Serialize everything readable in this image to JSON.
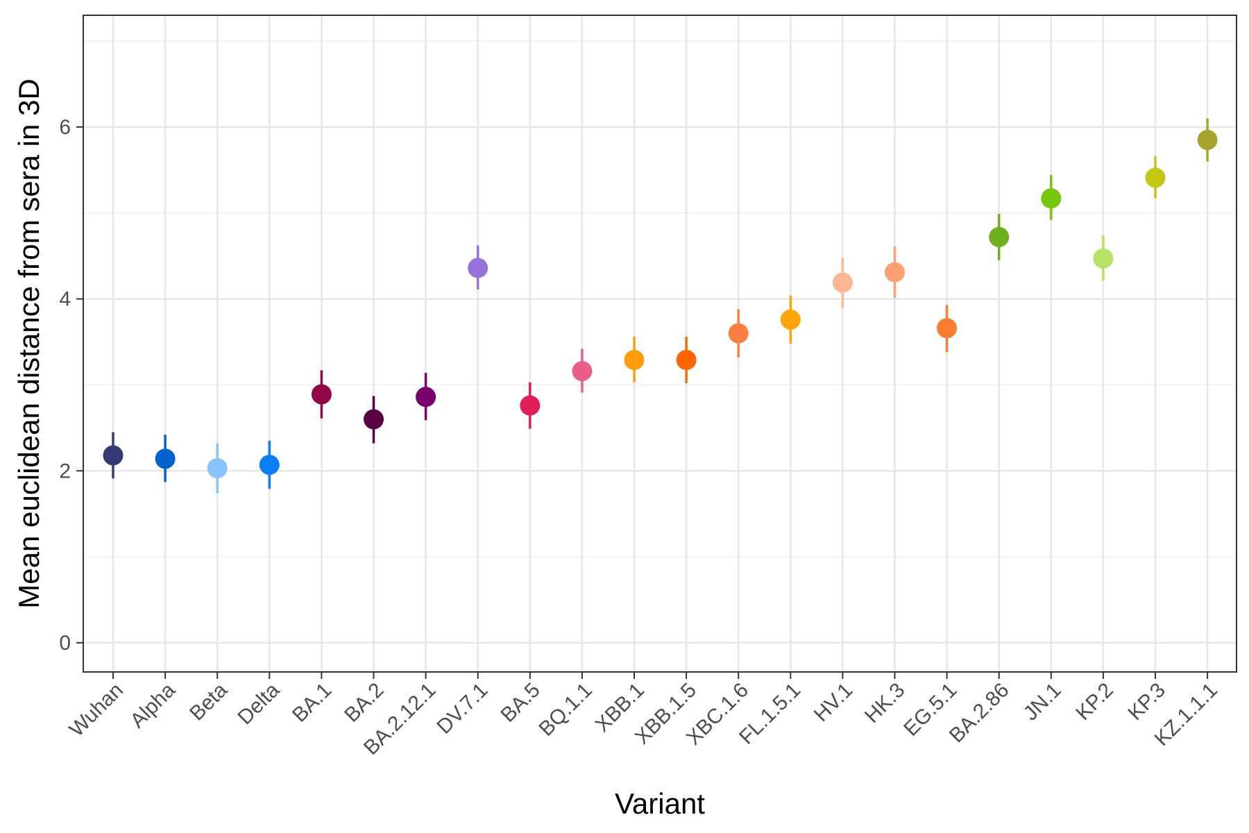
{
  "chart_data": {
    "type": "scatter",
    "title": "",
    "xlabel": "Variant",
    "ylabel": "Mean euclidean distance from sera in 3D",
    "ylim": [
      -0.34,
      7.3
    ],
    "yticks": [
      0,
      2,
      4,
      6
    ],
    "grid": true,
    "legend": "none",
    "categories": [
      "Wuhan",
      "Alpha",
      "Beta",
      "Delta",
      "BA.1",
      "BA.2",
      "BA.2.12.1",
      "DV.7.1",
      "BA.5",
      "BQ.1.1",
      "XBB.1",
      "XBB.1.5",
      "XBC.1.6",
      "FL.1.5.1",
      "HV.1",
      "HK.3",
      "EG.5.1",
      "BA.2.86",
      "JN.1",
      "KP.2",
      "KP.3",
      "KZ.1.1.1"
    ],
    "points": [
      {
        "variant": "Wuhan",
        "mean": 2.18,
        "lower": 1.91,
        "upper": 2.45,
        "color": "#343A73"
      },
      {
        "variant": "Alpha",
        "mean": 2.14,
        "lower": 1.87,
        "upper": 2.42,
        "color": "#0062CC"
      },
      {
        "variant": "Beta",
        "mean": 2.03,
        "lower": 1.74,
        "upper": 2.32,
        "color": "#86C3FF"
      },
      {
        "variant": "Delta",
        "mean": 2.07,
        "lower": 1.79,
        "upper": 2.35,
        "color": "#0A7FF5"
      },
      {
        "variant": "BA.1",
        "mean": 2.89,
        "lower": 2.61,
        "upper": 3.17,
        "color": "#930449"
      },
      {
        "variant": "BA.2",
        "mean": 2.6,
        "lower": 2.32,
        "upper": 2.87,
        "color": "#5A0143"
      },
      {
        "variant": "BA.2.12.1",
        "mean": 2.86,
        "lower": 2.59,
        "upper": 3.14,
        "color": "#7A006E"
      },
      {
        "variant": "DV.7.1",
        "mean": 4.36,
        "lower": 4.11,
        "upper": 4.62,
        "color": "#9872DC"
      },
      {
        "variant": "BA.5",
        "mean": 2.76,
        "lower": 2.49,
        "upper": 3.03,
        "color": "#E01E5A"
      },
      {
        "variant": "BQ.1.1",
        "mean": 3.16,
        "lower": 2.91,
        "upper": 3.42,
        "color": "#E8608A"
      },
      {
        "variant": "XBB.1",
        "mean": 3.29,
        "lower": 3.03,
        "upper": 3.56,
        "color": "#FF9D0A"
      },
      {
        "variant": "XBB.1.5",
        "mean": 3.29,
        "lower": 3.02,
        "upper": 3.56,
        "color": "#FF6602"
      },
      {
        "variant": "XBC.1.6",
        "mean": 3.6,
        "lower": 3.32,
        "upper": 3.88,
        "color": "#FC7E41"
      },
      {
        "variant": "FL.1.5.1",
        "mean": 3.76,
        "lower": 3.48,
        "upper": 4.04,
        "color": "#FFA509"
      },
      {
        "variant": "HV.1",
        "mean": 4.19,
        "lower": 3.89,
        "upper": 4.48,
        "color": "#FDB68F"
      },
      {
        "variant": "HK.3",
        "mean": 4.31,
        "lower": 4.01,
        "upper": 4.61,
        "color": "#FEA172"
      },
      {
        "variant": "EG.5.1",
        "mean": 3.66,
        "lower": 3.38,
        "upper": 3.93,
        "color": "#FC7C31"
      },
      {
        "variant": "BA.2.86",
        "mean": 4.72,
        "lower": 4.45,
        "upper": 4.99,
        "color": "#6EAF1E"
      },
      {
        "variant": "JN.1",
        "mean": 5.17,
        "lower": 4.92,
        "upper": 5.44,
        "color": "#73C609"
      },
      {
        "variant": "KP.2",
        "mean": 4.47,
        "lower": 4.21,
        "upper": 4.74,
        "color": "#B7E263"
      },
      {
        "variant": "KP.3",
        "mean": 5.41,
        "lower": 5.17,
        "upper": 5.66,
        "color": "#C3C612"
      },
      {
        "variant": "KZ.1.1.1",
        "mean": 5.85,
        "lower": 5.6,
        "upper": 6.1,
        "color": "#A8A32A"
      }
    ]
  }
}
